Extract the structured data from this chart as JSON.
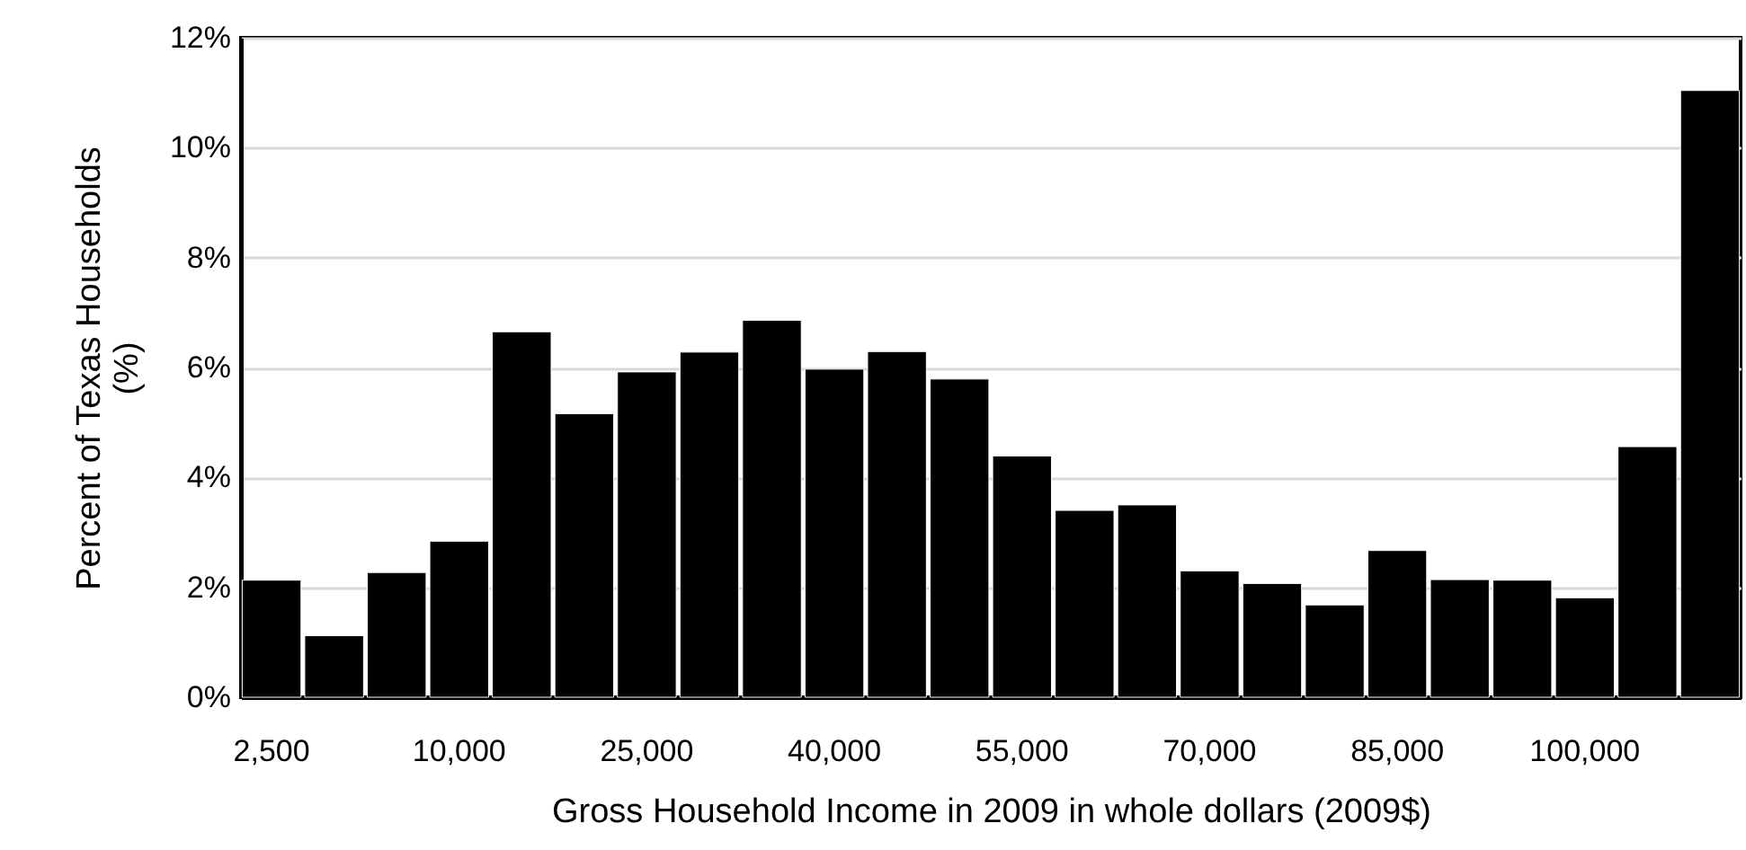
{
  "chart_data": {
    "type": "bar",
    "xlabel": "Gross Household Income in 2009 in whole dollars (2009$)",
    "ylabel": "Percent of Texas Households (%)",
    "categories": [
      "2,500",
      null,
      null,
      "10,000",
      null,
      null,
      "25,000",
      null,
      null,
      "40,000",
      null,
      null,
      "55,000",
      null,
      null,
      "70,000",
      null,
      null,
      "85,000",
      null,
      null,
      "100,000",
      null,
      null
    ],
    "values": [
      2.13,
      1.12,
      2.27,
      2.84,
      6.65,
      5.16,
      5.92,
      6.28,
      6.86,
      5.97,
      6.29,
      5.79,
      4.39,
      3.4,
      3.5,
      2.3,
      2.07,
      1.68,
      2.67,
      2.14,
      2.13,
      1.81,
      4.56,
      11.04
    ],
    "color": "#000000",
    "ylim": [
      0,
      12
    ],
    "yticks": [
      {
        "value": 0,
        "label": "0%"
      },
      {
        "value": 2,
        "label": "2%"
      },
      {
        "value": 4,
        "label": "4%"
      },
      {
        "value": 6,
        "label": "6%"
      },
      {
        "value": 8,
        "label": "8%"
      },
      {
        "value": 10,
        "label": "10%"
      },
      {
        "value": 12,
        "label": "12%"
      }
    ],
    "grid": "y"
  }
}
